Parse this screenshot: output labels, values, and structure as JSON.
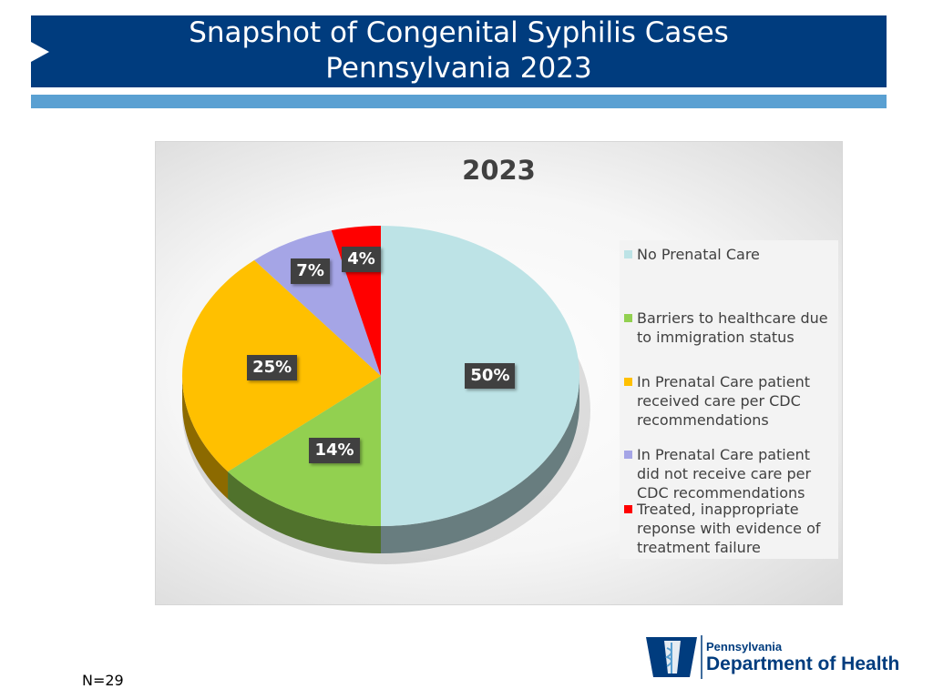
{
  "header": {
    "title_line1": "Snapshot of Congenital Syphilis Cases",
    "title_line2": "Pennsylvania 2023"
  },
  "chart_data": {
    "type": "pie",
    "title": "2023",
    "three_d": true,
    "legend_position": "right",
    "slices": [
      {
        "name": "No Prenatal Care",
        "value": 50,
        "label": "50%",
        "color": "#bde3e6"
      },
      {
        "name": "Barriers to healthcare due to immigration status",
        "value": 14,
        "label": "14%",
        "color": "#92d050"
      },
      {
        "name": "In Prenatal Care patient received care per CDC recommendations",
        "value": 25,
        "label": "25%",
        "color": "#ffc000"
      },
      {
        "name": "In Prenatal Care patient did not receive care per CDC recommendations",
        "value": 7,
        "label": "7%",
        "color": "#a5a5e6"
      },
      {
        "name": "Treated, inappropriate reponse with evidence of treatment failure",
        "value": 4,
        "label": "4%",
        "color": "#ff0000"
      }
    ]
  },
  "footnote": "N=29",
  "logo": {
    "line1": "Pennsylvania",
    "line2": "Department of Health"
  }
}
